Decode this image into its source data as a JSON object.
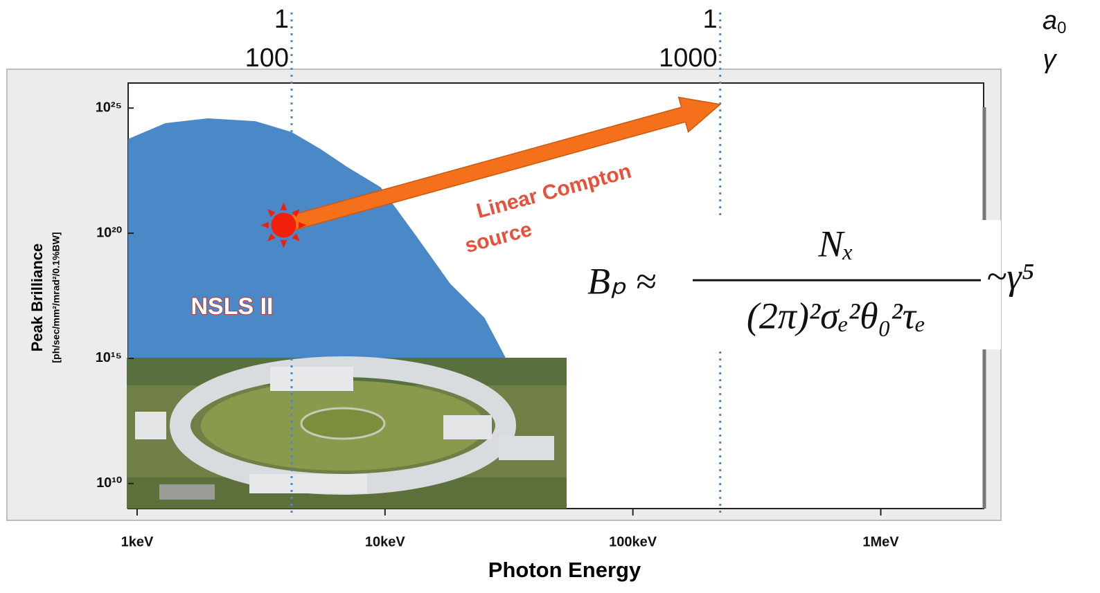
{
  "chart_data": {
    "type": "area",
    "xscale": "log",
    "yscale": "log",
    "xlabel": "Photon Energy",
    "ylabel": "Peak Brilliance",
    "ylabel_units": "[ph/sec/mm²/mrad²/0.1%BW]",
    "xlim": [
      0.92,
      2600
    ],
    "ylim": [
      1000000000.0,
      1e+26
    ],
    "xticks": [
      {
        "value": 1,
        "label": "1keV"
      },
      {
        "value": 10,
        "label": "10keV"
      },
      {
        "value": 100,
        "label": "100keV"
      },
      {
        "value": 1000,
        "label": "1MeV"
      }
    ],
    "yticks": [
      {
        "value": 10000000000.0,
        "label": "10¹⁰"
      },
      {
        "value": 1000000000000000.0,
        "label": "10¹⁵"
      },
      {
        "value": 1e+20,
        "label": "10²⁰"
      },
      {
        "value": 1e+25,
        "label": "10²⁵"
      }
    ],
    "series": [
      {
        "name": "NSLS II",
        "color": "#4a88c7",
        "x": [
          0.92,
          1.3,
          1.93,
          3,
          4.2,
          5.5,
          7,
          9.6,
          13.3,
          18.3,
          25.2,
          30.6
        ],
        "values": [
          5.8e+23,
          2.5e+24,
          3.9e+24,
          3e+24,
          1.1e+24,
          2.3e+23,
          4.6e+22,
          6.9e+21,
          8.3e+19,
          9.8e+17,
          4.2e+16,
          1100000000000000.0
        ]
      }
    ],
    "reference_lines": {
      "x": [
        4.2,
        225
      ],
      "color": "#4a88c7",
      "a0_values": [
        "1",
        "1"
      ],
      "gamma_values": [
        "100",
        "1000"
      ],
      "a0_label": "a",
      "a0_subscript": "0",
      "gamma_label": "γ"
    },
    "source_point": {
      "x": 3.9,
      "y": 2.1e+20,
      "color": "#f0200a"
    },
    "arrow": {
      "x": [
        3.9,
        225
      ],
      "y": [
        2.1e+20,
        1.4e+25
      ],
      "color": "#f4701a"
    },
    "annotation": [
      "Linear  Compton",
      "source"
    ],
    "equation": {
      "lhs": "Bₚ ≈",
      "numerator": "Nₓ",
      "denominator": "(2π)²σₑ²θ₀²τₑ",
      "rhs": "~γ⁵"
    }
  }
}
